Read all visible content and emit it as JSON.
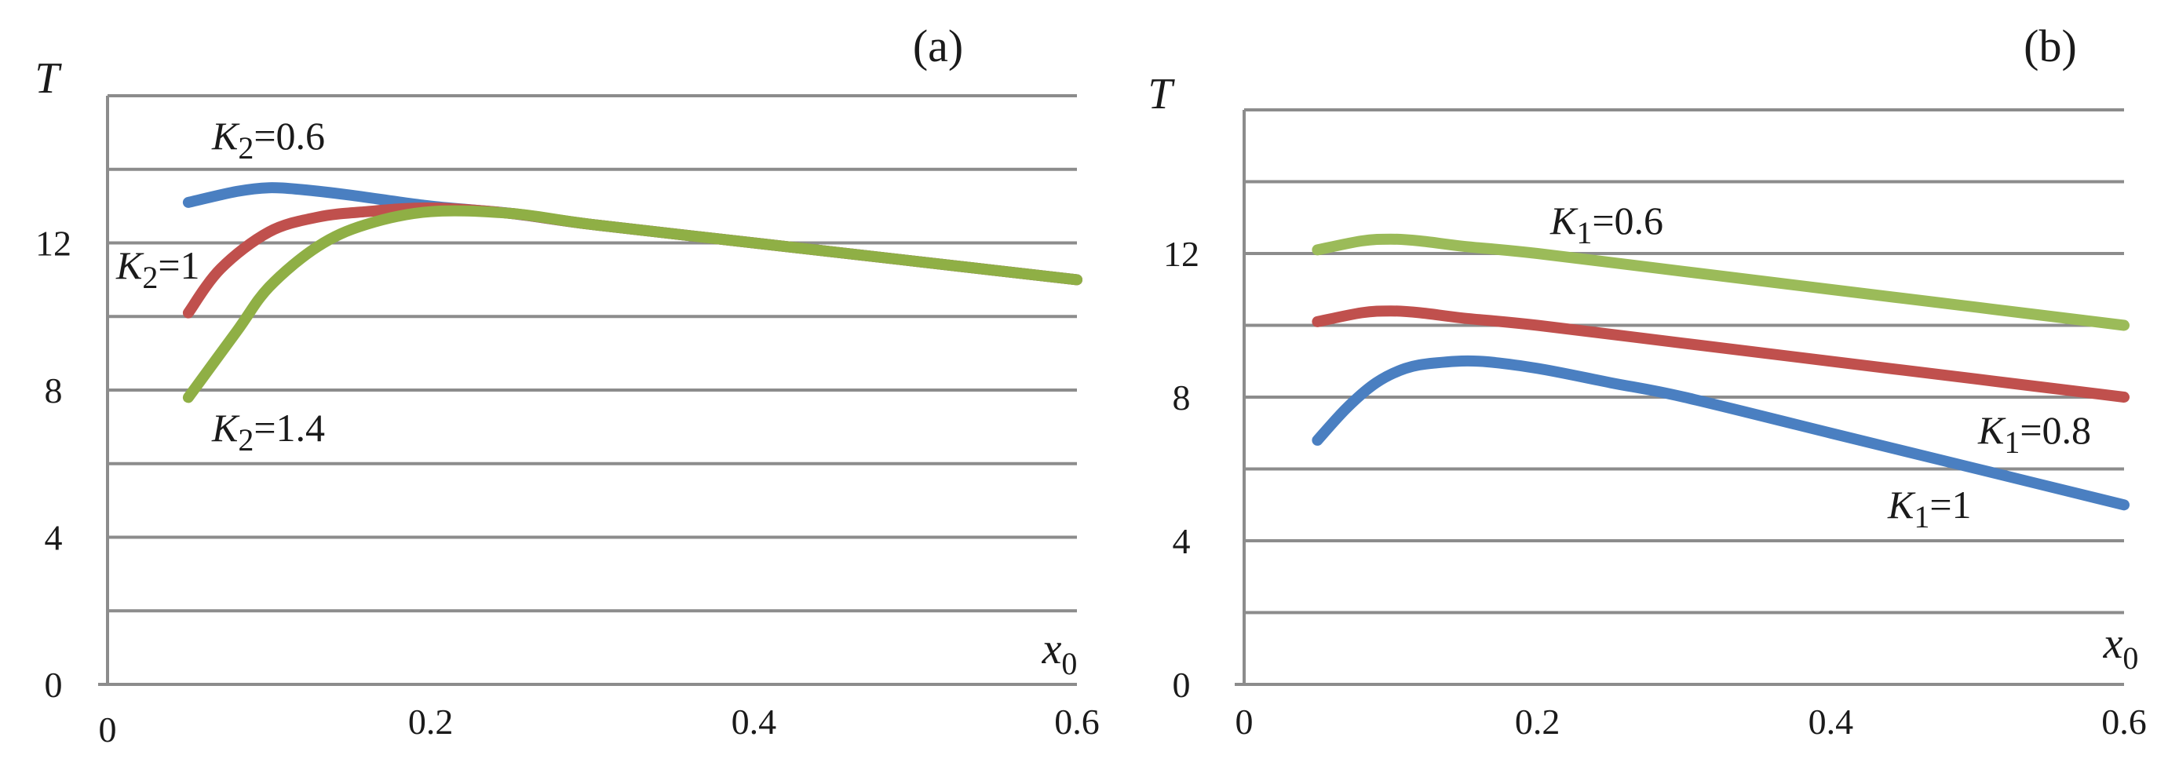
{
  "chart_data": [
    {
      "type": "line",
      "panel": "(a)",
      "ylabel": "T",
      "xlabel_base": "x",
      "xlabel_sub": "0",
      "xlim": [
        0,
        0.6
      ],
      "ylim": [
        0,
        16
      ],
      "grid_step": 2,
      "yticks": [
        0,
        4,
        8,
        12
      ],
      "ytick_labels": [
        "0",
        "4",
        "8",
        "12"
      ],
      "xticks": [
        0,
        0.2,
        0.4,
        0.6
      ],
      "xtick_labels": [
        "0",
        "0.2",
        "0.4",
        "0.6"
      ],
      "series": [
        {
          "name": "K2=0.6",
          "color": "#4a7fc1",
          "x": [
            0.05,
            0.08,
            0.1,
            0.12,
            0.15,
            0.2,
            0.25,
            0.3,
            0.4,
            0.5,
            0.6
          ],
          "y": [
            13.1,
            13.4,
            13.5,
            13.45,
            13.3,
            13.0,
            12.8,
            12.5,
            12.0,
            11.5,
            11.0
          ]
        },
        {
          "name": "K2=1",
          "color": "#c0504d",
          "x": [
            0.05,
            0.07,
            0.1,
            0.13,
            0.16,
            0.2,
            0.25,
            0.3,
            0.4,
            0.5,
            0.6
          ],
          "y": [
            10.1,
            11.3,
            12.3,
            12.7,
            12.85,
            12.95,
            12.8,
            12.5,
            12.0,
            11.5,
            11.0
          ]
        },
        {
          "name": "K2=1.4",
          "color": "#8faf45",
          "x": [
            0.05,
            0.08,
            0.1,
            0.13,
            0.16,
            0.2,
            0.25,
            0.3,
            0.4,
            0.5,
            0.6
          ],
          "y": [
            7.8,
            9.6,
            10.8,
            11.9,
            12.5,
            12.85,
            12.8,
            12.5,
            12.0,
            11.5,
            11.0
          ]
        }
      ],
      "labels": [
        {
          "sym": "K",
          "sub": "2",
          "rest": "=0.6"
        },
        {
          "sym": "K",
          "sub": "2",
          "rest": "=1"
        },
        {
          "sym": "K",
          "sub": "2",
          "rest": "=1.4"
        }
      ]
    },
    {
      "type": "line",
      "panel": "(b)",
      "ylabel": "T",
      "xlabel_base": "x",
      "xlabel_sub": "0",
      "xlim": [
        0,
        0.6
      ],
      "ylim": [
        0,
        16
      ],
      "grid_step": 2,
      "yticks": [
        0,
        4,
        8,
        12
      ],
      "ytick_labels": [
        "0",
        "4",
        "8",
        "12"
      ],
      "xticks": [
        0,
        0.2,
        0.4,
        0.6
      ],
      "xtick_labels": [
        "0",
        "0.2",
        "0.4",
        "0.6"
      ],
      "series": [
        {
          "name": "K1=0.6",
          "color": "#9bbb59",
          "x": [
            0.05,
            0.08,
            0.1,
            0.12,
            0.15,
            0.2,
            0.3,
            0.4,
            0.5,
            0.6
          ],
          "y": [
            12.1,
            12.35,
            12.4,
            12.35,
            12.2,
            12.0,
            11.5,
            11.0,
            10.5,
            10.0
          ]
        },
        {
          "name": "K1=0.8",
          "color": "#c0504d",
          "x": [
            0.05,
            0.08,
            0.1,
            0.12,
            0.15,
            0.2,
            0.3,
            0.4,
            0.5,
            0.6
          ],
          "y": [
            10.1,
            10.35,
            10.4,
            10.35,
            10.2,
            10.0,
            9.5,
            9.0,
            8.5,
            8.0
          ]
        },
        {
          "name": "K1=1",
          "color": "#4a7fc1",
          "x": [
            0.05,
            0.07,
            0.09,
            0.11,
            0.13,
            0.16,
            0.2,
            0.25,
            0.3,
            0.4,
            0.5,
            0.6
          ],
          "y": [
            6.8,
            7.7,
            8.4,
            8.8,
            8.95,
            9.0,
            8.8,
            8.4,
            8.0,
            7.0,
            6.0,
            5.0
          ]
        }
      ],
      "labels": [
        {
          "sym": "K",
          "sub": "1",
          "rest": "=0.6"
        },
        {
          "sym": "K",
          "sub": "1",
          "rest": "=0.8"
        },
        {
          "sym": "K",
          "sub": "1",
          "rest": "=1"
        }
      ]
    }
  ]
}
